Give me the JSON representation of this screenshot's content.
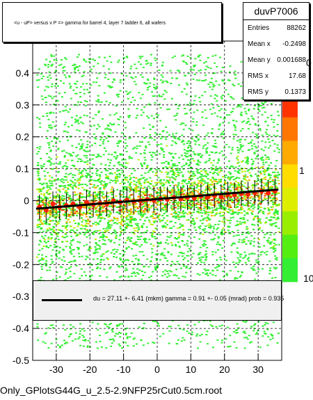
{
  "chart_data": {
    "type": "scatter",
    "title": "<u - uP>       versus   v P =>  gamma for barrel 4, layer 7 ladder 6, all wafers",
    "xlabel": "",
    "ylabel": "",
    "xlim": [
      -37,
      37
    ],
    "ylim": [
      -0.5,
      0.5
    ],
    "x_ticks": [
      "-30",
      "-20",
      "-10",
      "0",
      "10",
      "20",
      "30"
    ],
    "x_tick_values": [
      -30,
      -20,
      -10,
      0,
      10,
      20,
      30
    ],
    "y_ticks": [
      "-0.5",
      "-0.4",
      "-0.3",
      "-0.2",
      "-0.1",
      "0",
      "0.1",
      "0.2",
      "0.3",
      "0.4"
    ],
    "y_tick_values": [
      -0.5,
      -0.4,
      -0.3,
      -0.2,
      -0.1,
      0,
      0.1,
      0.2,
      0.3,
      0.4
    ],
    "grid": true,
    "z_ticks": [
      "0",
      "1",
      "10"
    ],
    "colors": {
      "low_density": "#33ee33",
      "mid_density": "#bbee00",
      "high_density": "#ffaa00",
      "peak_density": "#ff3300",
      "profile_points": "#ff2200",
      "fit_line": "#000000"
    },
    "profile": {
      "x": [
        -35,
        -33,
        -31,
        -29,
        -27,
        -25,
        -23,
        -21,
        -19,
        -17,
        -15,
        -13,
        -11,
        -9,
        -7,
        -5,
        -3,
        -1,
        1,
        3,
        5,
        7,
        9,
        11,
        13,
        15,
        17,
        19,
        21,
        23,
        25,
        27,
        29,
        31,
        33,
        35
      ],
      "y": [
        -0.02,
        -0.03,
        -0.01,
        -0.02,
        -0.015,
        -0.01,
        -0.02,
        -0.005,
        -0.012,
        -0.008,
        -0.01,
        0.0,
        -0.005,
        0.002,
        -0.002,
        0.0,
        0.004,
        0.002,
        0.006,
        0.004,
        0.01,
        0.006,
        0.01,
        0.008,
        0.014,
        0.012,
        0.016,
        0.012,
        0.02,
        0.018,
        0.022,
        0.02,
        0.025,
        0.03,
        0.024,
        0.03
      ]
    },
    "fit": {
      "x": [
        -36,
        36
      ],
      "y": [
        -0.025,
        0.035
      ]
    }
  },
  "stats": {
    "name": "duvP7006",
    "rows": [
      {
        "label": "Entries",
        "value": "88262"
      },
      {
        "label": "Mean x",
        "value": "-0.2498"
      },
      {
        "label": "Mean y",
        "value": "0.001688"
      },
      {
        "label": "RMS x",
        "value": "17.68"
      },
      {
        "label": "RMS y",
        "value": "0.1373"
      }
    ]
  },
  "fit_legend": {
    "text": "du =    27.11 +-  6.41 (mkm) gamma =    0.91 +-  0.05 (mrad) prob = 0.935"
  },
  "footer": "Only_GPlotsG44G_u_2.5-2.9NFP25rCut0.5cm.root"
}
